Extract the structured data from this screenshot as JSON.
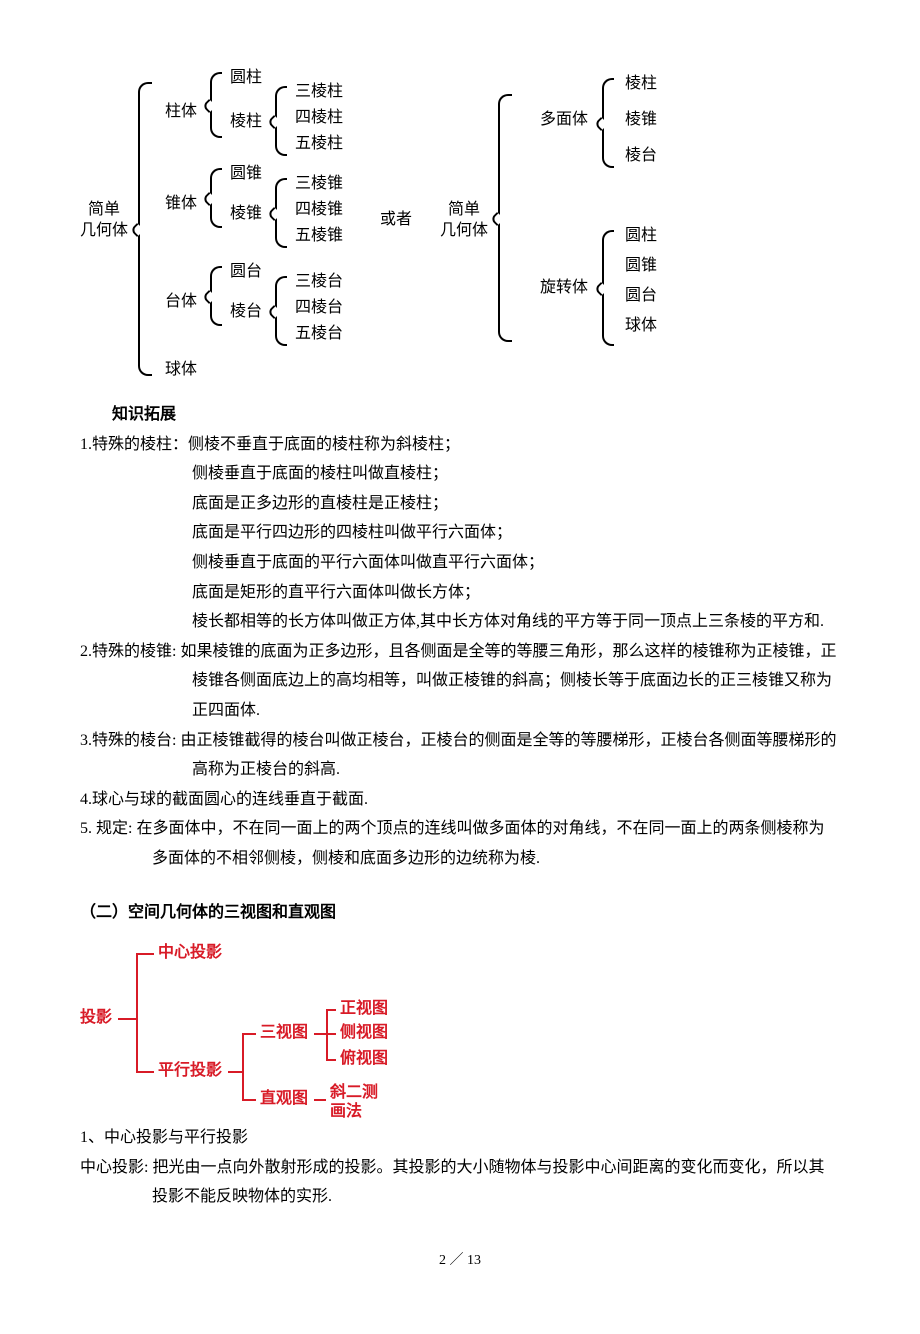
{
  "diagram1": {
    "root": "简单\n几何体",
    "or_label": "或者",
    "root2": "简单\n几何体",
    "level1": [
      {
        "label": "柱体",
        "children_label": "",
        "children": [
          {
            "label": "圆柱"
          },
          {
            "label": "棱柱",
            "children": [
              {
                "label": "三棱柱"
              },
              {
                "label": "四棱柱"
              },
              {
                "label": "五棱柱"
              }
            ]
          }
        ]
      },
      {
        "label": "锥体",
        "children": [
          {
            "label": "圆锥"
          },
          {
            "label": "棱锥",
            "children": [
              {
                "label": "三棱锥"
              },
              {
                "label": "四棱锥"
              },
              {
                "label": "五棱锥"
              }
            ]
          }
        ]
      },
      {
        "label": "台体",
        "children": [
          {
            "label": "圆台"
          },
          {
            "label": "棱台",
            "children": [
              {
                "label": "三棱台"
              },
              {
                "label": "四棱台"
              },
              {
                "label": "五棱台"
              }
            ]
          }
        ]
      },
      {
        "label": "球体"
      }
    ],
    "right": [
      {
        "label": "多面体",
        "children": [
          {
            "label": "棱柱"
          },
          {
            "label": "棱锥"
          },
          {
            "label": "棱台"
          }
        ]
      },
      {
        "label": "旋转体",
        "children": [
          {
            "label": "圆柱"
          },
          {
            "label": "圆锥"
          },
          {
            "label": "圆台"
          },
          {
            "label": "球体"
          }
        ]
      }
    ]
  },
  "knowledge_title": "知识拓展",
  "items": {
    "p1a": "1.特殊的棱柱：侧棱不垂直于底面的棱柱称为斜棱柱；",
    "p1b": "侧棱垂直于底面的棱柱叫做直棱柱；",
    "p1c": "底面是正多边形的直棱柱是正棱柱；",
    "p1d": "底面是平行四边形的四棱柱叫做平行六面体；",
    "p1e": "侧棱垂直于底面的平行六面体叫做直平行六面体；",
    "p1f": "底面是矩形的直平行六面体叫做长方体；",
    "p1g": "棱长都相等的长方体叫做正方体,其中长方体对角线的平方等于同一顶点上三条棱的平方和.",
    "p2a": "2.特殊的棱锥: 如果棱锥的底面为正多边形，且各侧面是全等的等腰三角形，那么这样的棱锥称为正棱锥，正棱锥各侧面底边上的高均相等，叫做正棱锥的斜高；侧棱长等于底面边长的正三棱锥又称为正四面体.",
    "p3a": "3.特殊的棱台: 由正棱锥截得的棱台叫做正棱台，正棱台的侧面是全等的等腰梯形，正棱台各侧面等腰梯形的高称为正棱台的斜高.",
    "p4a": "4.球心与球的截面圆心的连线垂直于截面.",
    "p5a": "5. 规定: 在多面体中，不在同一面上的两个顶点的连线叫做多面体的对角线，不在同一面上的两条侧棱称为多面体的不相邻侧棱，侧棱和底面多边形的边统称为棱."
  },
  "section2_title": "（二）空间几何体的三视图和直观图",
  "mindmap": {
    "root": "投影",
    "c1": "中心投影",
    "c2": "平行投影",
    "c3": "三视图",
    "c4": "直观图",
    "c3a": "正视图",
    "c3b": "侧视图",
    "c3c": "俯视图",
    "c4a": "斜二测\n画法"
  },
  "sub1_title": "1、中心投影与平行投影",
  "sub1_body": "中心投影: 把光由一点向外散射形成的投影。其投影的大小随物体与投影中心间距离的变化而变化，所以其投影不能反映物体的实形.",
  "page_number": "2 ／ 13"
}
